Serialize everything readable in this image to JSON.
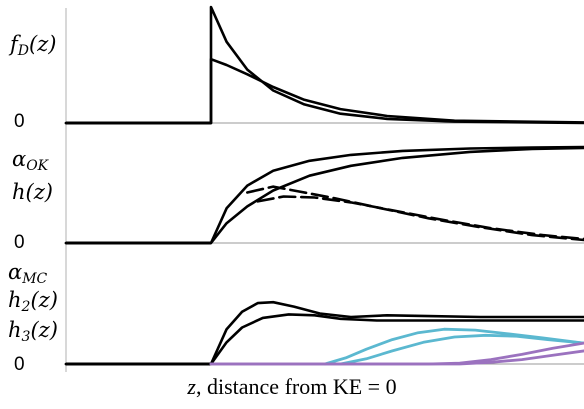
{
  "chart_data": [
    {
      "type": "line",
      "panel": "top",
      "ylabel_main": "f",
      "ylabel_sub": "D",
      "ylabel_arg": "(z)",
      "zero_label": "0",
      "series": [
        {
          "style": "solid",
          "color": "#000000",
          "points": [
            [
              0.0,
              0
            ],
            [
              0.15,
              0
            ],
            [
              0.28,
              0
            ],
            [
              0.28,
              1.0
            ],
            [
              0.31,
              0.7
            ],
            [
              0.35,
              0.46
            ],
            [
              0.4,
              0.28
            ],
            [
              0.46,
              0.16
            ],
            [
              0.53,
              0.08
            ],
            [
              0.62,
              0.035
            ],
            [
              0.75,
              0.012
            ],
            [
              1.0,
              0.0
            ]
          ]
        },
        {
          "style": "solid",
          "color": "#000000",
          "points": [
            [
              0.0,
              0
            ],
            [
              0.15,
              0
            ],
            [
              0.28,
              0
            ],
            [
              0.28,
              0.55
            ],
            [
              0.31,
              0.5
            ],
            [
              0.35,
              0.42
            ],
            [
              0.4,
              0.31
            ],
            [
              0.46,
              0.2
            ],
            [
              0.53,
              0.12
            ],
            [
              0.62,
              0.06
            ],
            [
              0.75,
              0.02
            ],
            [
              1.0,
              0.005
            ]
          ]
        }
      ]
    },
    {
      "type": "line",
      "panel": "middle",
      "ylabel_main": "α",
      "ylabel_sub": "OK",
      "ylabel2": "h(z)",
      "zero_label": "0",
      "series": [
        {
          "style": "solid",
          "color": "#000000",
          "points": [
            [
              0.0,
              0
            ],
            [
              0.15,
              0
            ],
            [
              0.28,
              0
            ],
            [
              0.31,
              0.35
            ],
            [
              0.35,
              0.58
            ],
            [
              0.4,
              0.73
            ],
            [
              0.47,
              0.83
            ],
            [
              0.55,
              0.89
            ],
            [
              0.65,
              0.93
            ],
            [
              0.78,
              0.955
            ],
            [
              0.9,
              0.965
            ],
            [
              1.0,
              0.97
            ]
          ]
        },
        {
          "style": "solid",
          "color": "#000000",
          "points": [
            [
              0.0,
              0
            ],
            [
              0.15,
              0
            ],
            [
              0.28,
              0
            ],
            [
              0.31,
              0.2
            ],
            [
              0.35,
              0.37
            ],
            [
              0.4,
              0.53
            ],
            [
              0.47,
              0.68
            ],
            [
              0.55,
              0.78
            ],
            [
              0.65,
              0.86
            ],
            [
              0.78,
              0.92
            ],
            [
              0.9,
              0.95
            ],
            [
              1.0,
              0.96
            ]
          ]
        },
        {
          "style": "dashed",
          "color": "#000000",
          "points": [
            [
              0.35,
              0.51
            ],
            [
              0.4,
              0.57
            ],
            [
              0.45,
              0.52
            ],
            [
              0.52,
              0.45
            ],
            [
              0.6,
              0.36
            ],
            [
              0.7,
              0.25
            ],
            [
              0.8,
              0.16
            ],
            [
              0.9,
              0.08
            ],
            [
              1.0,
              0.03
            ]
          ]
        },
        {
          "style": "dashed",
          "color": "#000000",
          "points": [
            [
              0.37,
              0.42
            ],
            [
              0.42,
              0.47
            ],
            [
              0.48,
              0.46
            ],
            [
              0.55,
              0.41
            ],
            [
              0.63,
              0.33
            ],
            [
              0.72,
              0.24
            ],
            [
              0.82,
              0.15
            ],
            [
              0.92,
              0.08
            ],
            [
              1.0,
              0.04
            ]
          ]
        }
      ]
    },
    {
      "type": "line",
      "panel": "bottom",
      "ylabel_main": "α",
      "ylabel_sub": "MC",
      "ylabel2_main": "h",
      "ylabel2_sub": "2",
      "ylabel2_arg": "(z)",
      "ylabel3_main": "h",
      "ylabel3_sub": "3",
      "ylabel3_arg": "(z)",
      "zero_label": "0",
      "series": [
        {
          "style": "solid",
          "color": "#000000",
          "points": [
            [
              0.0,
              0
            ],
            [
              0.15,
              0
            ],
            [
              0.28,
              0
            ],
            [
              0.31,
              0.4
            ],
            [
              0.34,
              0.6
            ],
            [
              0.37,
              0.7
            ],
            [
              0.4,
              0.71
            ],
            [
              0.44,
              0.66
            ],
            [
              0.49,
              0.58
            ],
            [
              0.55,
              0.54
            ],
            [
              0.62,
              0.56
            ],
            [
              0.7,
              0.55
            ],
            [
              0.8,
              0.54
            ],
            [
              1.0,
              0.54
            ]
          ]
        },
        {
          "style": "solid",
          "color": "#000000",
          "points": [
            [
              0.0,
              0
            ],
            [
              0.15,
              0
            ],
            [
              0.28,
              0
            ],
            [
              0.31,
              0.25
            ],
            [
              0.34,
              0.42
            ],
            [
              0.38,
              0.53
            ],
            [
              0.43,
              0.57
            ],
            [
              0.48,
              0.56
            ],
            [
              0.53,
              0.52
            ],
            [
              0.6,
              0.5
            ],
            [
              0.7,
              0.5
            ],
            [
              0.85,
              0.5
            ],
            [
              1.0,
              0.5
            ]
          ]
        },
        {
          "style": "solid",
          "color": "#5bb8d0",
          "points": [
            [
              0.5,
              0.0
            ],
            [
              0.54,
              0.07
            ],
            [
              0.58,
              0.17
            ],
            [
              0.63,
              0.28
            ],
            [
              0.68,
              0.36
            ],
            [
              0.73,
              0.4
            ],
            [
              0.79,
              0.39
            ],
            [
              0.85,
              0.35
            ],
            [
              0.92,
              0.3
            ],
            [
              1.0,
              0.24
            ]
          ]
        },
        {
          "style": "solid",
          "color": "#5bb8d0",
          "points": [
            [
              0.53,
              0.0
            ],
            [
              0.58,
              0.06
            ],
            [
              0.63,
              0.15
            ],
            [
              0.69,
              0.25
            ],
            [
              0.75,
              0.31
            ],
            [
              0.81,
              0.33
            ],
            [
              0.87,
              0.32
            ],
            [
              0.93,
              0.28
            ],
            [
              1.0,
              0.24
            ]
          ]
        },
        {
          "style": "solid",
          "color": "#9b72bf",
          "points": [
            [
              0.28,
              0.0
            ],
            [
              0.7,
              0.0
            ],
            [
              0.76,
              0.01
            ],
            [
              0.82,
              0.05
            ],
            [
              0.88,
              0.11
            ],
            [
              0.94,
              0.18
            ],
            [
              1.0,
              0.24
            ]
          ]
        },
        {
          "style": "solid",
          "color": "#9b72bf",
          "points": [
            [
              0.28,
              0.0
            ],
            [
              0.76,
              0.0
            ],
            [
              0.82,
              0.02
            ],
            [
              0.88,
              0.05
            ],
            [
              0.94,
              0.1
            ],
            [
              1.0,
              0.15
            ]
          ]
        }
      ]
    }
  ],
  "xlabel_italic": "z",
  "xlabel_rest": ", distance from KE = 0"
}
